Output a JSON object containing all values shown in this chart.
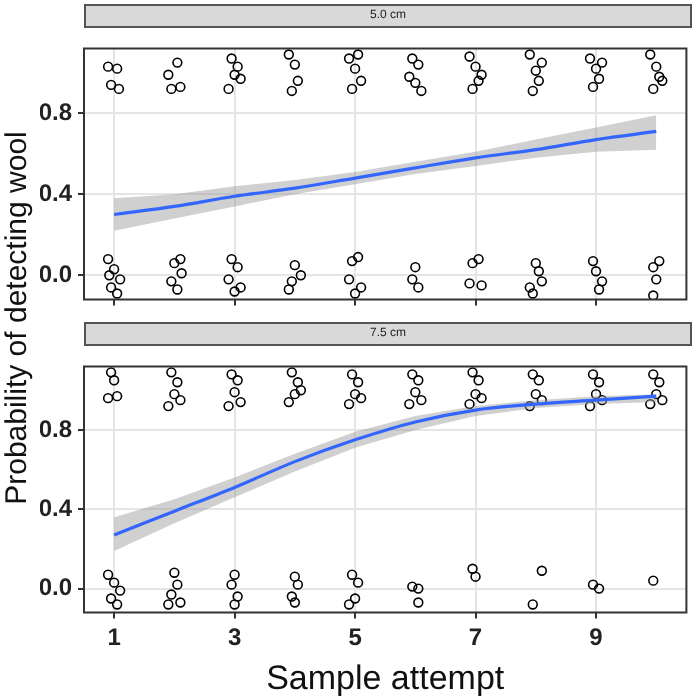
{
  "chart_data": [
    {
      "type": "scatter",
      "title": "5.0 cm",
      "ylabel": "Probability of detecting wool",
      "xlim": [
        0.5,
        10.5
      ],
      "xticks": [
        1,
        3,
        5,
        7,
        9
      ],
      "ylim": [
        -0.12,
        1.12
      ],
      "yticks": [
        {
          "value": 0,
          "label": "0.0"
        },
        {
          "value": 0.4,
          "label": "0.4"
        },
        {
          "value": 0.8,
          "label": "0.8"
        }
      ],
      "grid": true,
      "tick_labels": "y",
      "series": [
        {
          "marker": "circle",
          "color": "#000000",
          "x": [
            0.9,
            1.05,
            0.95,
            1.08,
            0.9,
            1.0,
            1.1,
            0.95,
            1.05,
            0.92,
            1.9,
            2.05,
            2.1,
            1.95,
            2.0,
            2.1,
            1.95,
            2.05,
            2.12,
            2.95,
            3.05,
            3.1,
            2.9,
            3.0,
            2.95,
            3.05,
            2.9,
            3.1,
            3.0,
            3.9,
            4.0,
            4.05,
            3.95,
            4.0,
            3.95,
            4.1,
            3.9,
            4.9,
            5.0,
            5.1,
            4.95,
            5.05,
            4.95,
            5.05,
            4.9,
            5.1,
            5.0,
            5.95,
            6.05,
            5.9,
            6.1,
            6.0,
            6.0,
            5.95,
            6.05,
            6.9,
            7.0,
            7.05,
            6.95,
            7.1,
            6.95,
            7.05,
            6.9,
            7.1,
            7.9,
            8.0,
            8.05,
            7.95,
            8.1,
            8.0,
            8.05,
            7.9,
            8.1,
            7.95,
            8.9,
            9.0,
            9.05,
            8.95,
            9.1,
            8.95,
            9.0,
            9.1,
            9.05,
            9.9,
            10.0,
            10.1,
            9.95,
            10.05,
            9.95,
            10.05,
            10.0,
            9.95
          ],
          "values": [
            1.03,
            1.02,
            0.94,
            0.92,
            0.08,
            0.03,
            -0.02,
            -0.06,
            -0.09,
            0.0,
            0.99,
            1.05,
            0.93,
            0.92,
            0.06,
            0.08,
            -0.03,
            -0.07,
            0.01,
            1.07,
            1.03,
            0.97,
            0.92,
            0.99,
            0.08,
            0.04,
            -0.02,
            -0.06,
            -0.08,
            1.09,
            1.04,
            0.96,
            0.91,
            0.05,
            -0.03,
            0.0,
            -0.07,
            1.07,
            1.02,
            0.96,
            0.92,
            1.09,
            0.07,
            0.09,
            -0.02,
            -0.06,
            -0.09,
            1.07,
            1.04,
            0.98,
            0.91,
            0.95,
            0.04,
            -0.02,
            -0.06,
            1.08,
            1.03,
            0.96,
            0.92,
            0.99,
            0.06,
            0.08,
            -0.04,
            -0.05,
            1.09,
            1.01,
            0.96,
            0.91,
            1.05,
            0.06,
            0.02,
            -0.06,
            -0.03,
            -0.09,
            1.07,
            1.02,
            0.97,
            0.93,
            1.05,
            0.07,
            0.02,
            -0.03,
            -0.07,
            1.09,
            1.03,
            0.96,
            0.92,
            0.98,
            0.04,
            0.07,
            -0.02,
            -0.1
          ]
        },
        {
          "type": "line",
          "marker": "none",
          "color": "#3366ff",
          "x": [
            1,
            2,
            3,
            4,
            5,
            6,
            7,
            8,
            9,
            10
          ],
          "values": [
            0.3,
            0.34,
            0.39,
            0.43,
            0.48,
            0.53,
            0.58,
            0.62,
            0.67,
            0.71
          ],
          "lower": [
            0.22,
            0.28,
            0.34,
            0.4,
            0.45,
            0.5,
            0.54,
            0.58,
            0.61,
            0.62
          ],
          "upper": [
            0.38,
            0.4,
            0.44,
            0.47,
            0.51,
            0.56,
            0.61,
            0.67,
            0.73,
            0.79
          ]
        }
      ]
    },
    {
      "type": "scatter",
      "title": "7.5 cm",
      "xlabel": "Sample attempt",
      "xlim": [
        0.5,
        10.5
      ],
      "xticks": [
        1,
        3,
        5,
        7,
        9
      ],
      "ylim": [
        -0.12,
        1.12
      ],
      "yticks": [
        {
          "value": 0,
          "label": "0.0"
        },
        {
          "value": 0.4,
          "label": "0.4"
        },
        {
          "value": 0.8,
          "label": "0.8"
        }
      ],
      "grid": true,
      "series": [
        {
          "marker": "circle",
          "color": "#000000",
          "x": [
            0.95,
            1.0,
            1.05,
            0.9,
            0.9,
            1.0,
            1.1,
            0.95,
            1.05,
            1.95,
            2.05,
            2.0,
            1.9,
            2.1,
            2.0,
            2.05,
            1.95,
            2.1,
            1.9,
            2.95,
            3.05,
            3.0,
            2.9,
            3.1,
            3.0,
            2.95,
            3.05,
            3.0,
            3.95,
            4.05,
            4.0,
            3.9,
            4.1,
            4.0,
            4.05,
            3.95,
            4.0,
            4.95,
            5.05,
            5.0,
            4.9,
            5.1,
            4.95,
            5.05,
            5.0,
            4.9,
            5.95,
            6.05,
            6.0,
            5.9,
            6.1,
            5.95,
            6.05,
            6.05,
            6.95,
            7.05,
            7.0,
            6.9,
            7.1,
            6.95,
            7.0,
            7.95,
            8.05,
            8.0,
            7.9,
            8.1,
            8.1,
            7.95,
            8.95,
            9.05,
            9.0,
            8.9,
            9.1,
            8.95,
            9.05,
            9.95,
            10.05,
            10.0,
            9.9,
            10.1,
            9.95
          ],
          "values": [
            1.09,
            1.05,
            0.97,
            0.96,
            0.07,
            0.03,
            -0.01,
            -0.05,
            -0.08,
            1.09,
            1.04,
            0.98,
            0.92,
            0.95,
            0.08,
            0.02,
            -0.03,
            -0.07,
            -0.08,
            1.08,
            1.05,
            0.99,
            0.92,
            0.94,
            0.07,
            0.02,
            -0.04,
            -0.08,
            1.09,
            1.04,
            0.98,
            0.94,
            1.0,
            0.06,
            0.02,
            -0.04,
            -0.07,
            1.08,
            1.04,
            0.98,
            0.93,
            0.96,
            0.07,
            0.03,
            -0.05,
            -0.08,
            1.08,
            1.05,
            0.99,
            0.93,
            0.95,
            0.01,
            0.0,
            -0.07,
            1.09,
            1.05,
            0.98,
            0.93,
            0.96,
            0.1,
            0.06,
            1.08,
            1.05,
            0.98,
            0.92,
            0.95,
            0.09,
            -0.08,
            1.08,
            1.04,
            0.98,
            0.92,
            0.95,
            0.02,
            0.0,
            1.08,
            1.04,
            0.98,
            0.93,
            0.95,
            0.04
          ]
        },
        {
          "type": "line",
          "marker": "none",
          "color": "#3366ff",
          "x": [
            1,
            2,
            3,
            4,
            5,
            6,
            7,
            8,
            9,
            10
          ],
          "values": [
            0.27,
            0.39,
            0.51,
            0.64,
            0.75,
            0.84,
            0.9,
            0.93,
            0.95,
            0.97
          ],
          "lower": [
            0.19,
            0.33,
            0.46,
            0.59,
            0.71,
            0.8,
            0.87,
            0.91,
            0.93,
            0.94
          ],
          "upper": [
            0.36,
            0.45,
            0.56,
            0.68,
            0.79,
            0.87,
            0.92,
            0.95,
            0.97,
            0.98
          ]
        }
      ]
    }
  ]
}
